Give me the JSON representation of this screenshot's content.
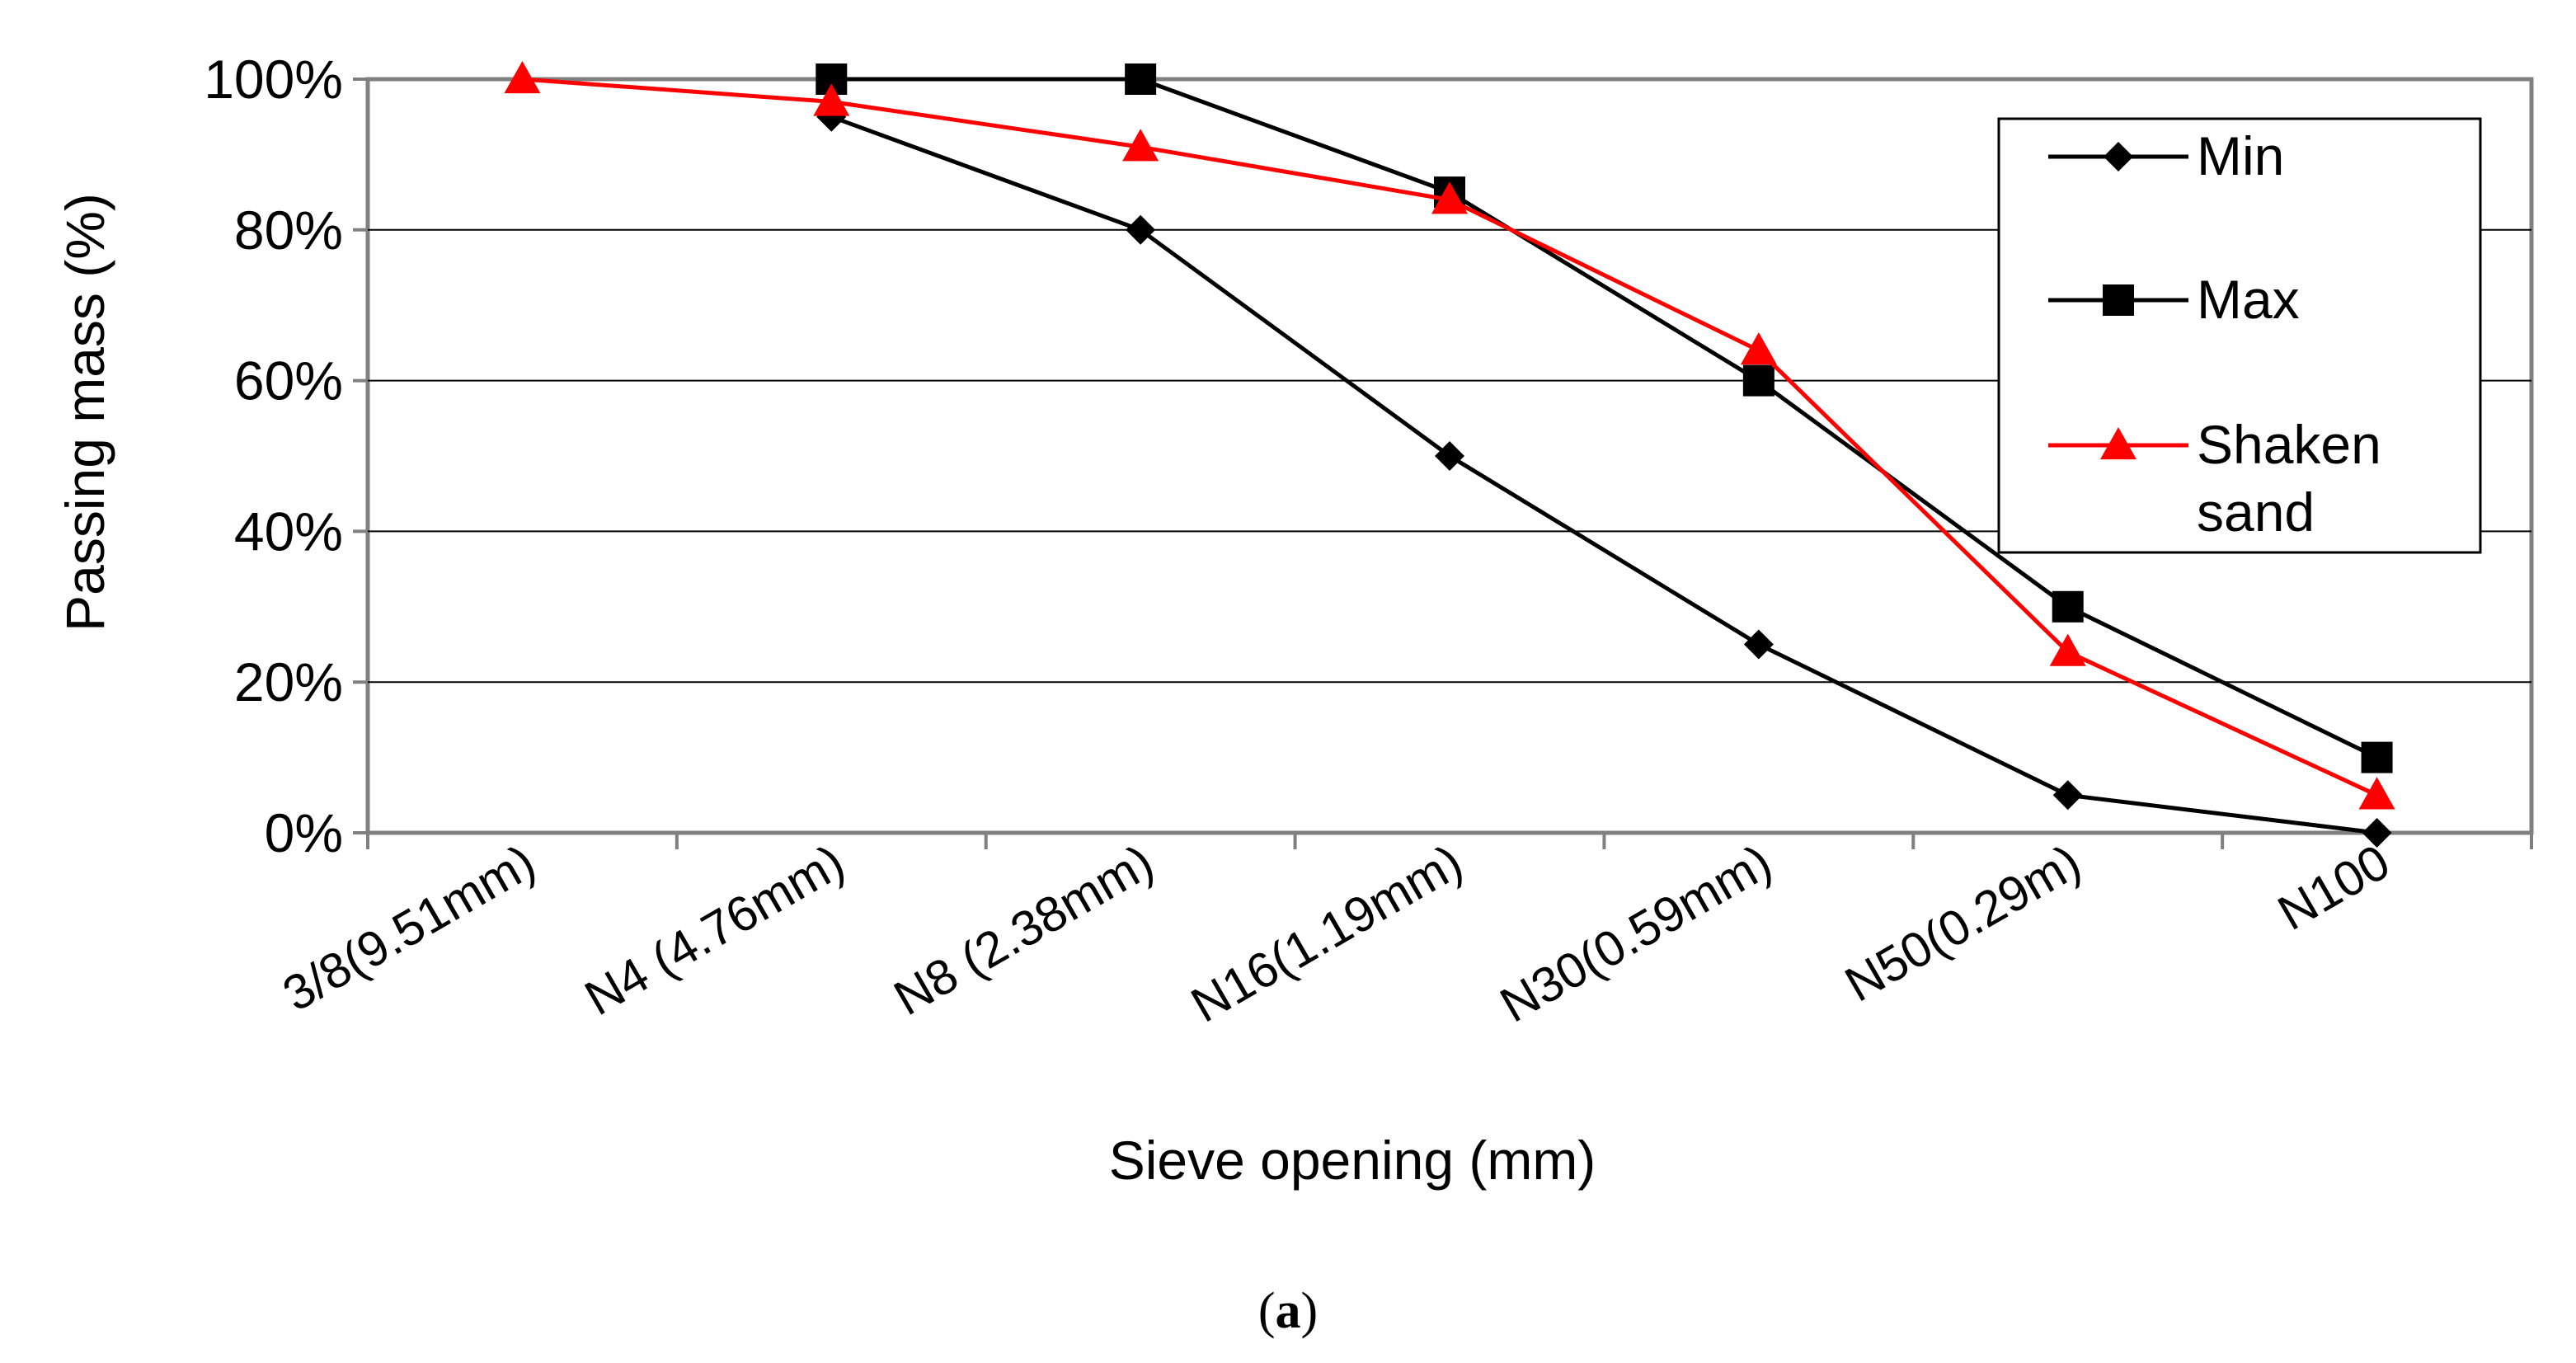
{
  "chart_data": {
    "type": "line",
    "categories": [
      "3/8(9.51mm)",
      "N4 (4.76mm)",
      "N8 (2.38mm)",
      "N16(1.19mm)",
      "N30(0.59mm)",
      "N50(0.29m)",
      "N100"
    ],
    "series": [
      {
        "name": "Min",
        "color": "#000000",
        "marker": "diamond",
        "values": [
          null,
          95,
          80,
          50,
          25,
          5,
          0
        ]
      },
      {
        "name": "Max",
        "color": "#000000",
        "marker": "square",
        "values": [
          null,
          100,
          100,
          85,
          60,
          30,
          10
        ]
      },
      {
        "name": "Shaken sand",
        "legend_lines": [
          "Shaken",
          "sand"
        ],
        "color": "#ff0000",
        "marker": "triangle",
        "values": [
          100,
          97,
          91,
          84,
          64,
          24,
          5
        ]
      }
    ],
    "ylim": [
      0,
      100
    ],
    "yticks": [
      "0%",
      "20%",
      "40%",
      "60%",
      "80%",
      "100%"
    ],
    "xlabel": "Sieve opening (mm)",
    "ylabel": "Passing mass (%)",
    "grid": true,
    "legend": "top-right",
    "caption_open": "(",
    "caption_letter": "a",
    "caption_close": ")"
  }
}
